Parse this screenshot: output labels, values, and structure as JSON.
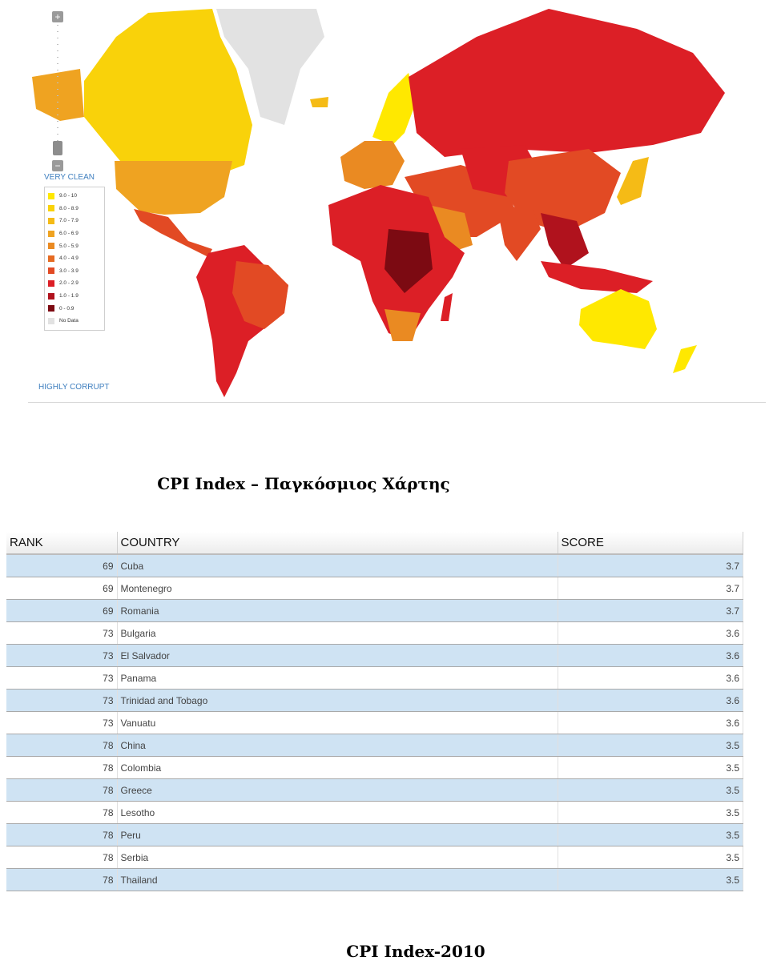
{
  "map": {
    "legend_top_label": "VERY CLEAN",
    "legend_bottom_label": "HIGHLY CORRUPT",
    "zoom_in": "+",
    "zoom_out": "−",
    "legend": [
      {
        "label": "9.0 - 10",
        "color": "#ffe800"
      },
      {
        "label": "8.0 - 8.9",
        "color": "#f9d20a"
      },
      {
        "label": "7.0 - 7.9",
        "color": "#f5bb16"
      },
      {
        "label": "6.0 - 6.9",
        "color": "#efa321"
      },
      {
        "label": "5.0 - 5.9",
        "color": "#ea8a22"
      },
      {
        "label": "4.0 - 4.9",
        "color": "#e66b22"
      },
      {
        "label": "3.0 - 3.9",
        "color": "#e24a24"
      },
      {
        "label": "2.0 - 2.9",
        "color": "#dc1f26"
      },
      {
        "label": "1.0 - 1.9",
        "color": "#b0121d"
      },
      {
        "label": "0 - 0.9",
        "color": "#7c0a12"
      },
      {
        "label": "No Data",
        "color": "#e2e2e2"
      }
    ]
  },
  "captions": {
    "map": "CPI Index – Παγκόσμιος Χάρτης",
    "table": "CPI Index-2010"
  },
  "table": {
    "headers": {
      "rank": "RANK",
      "country": "COUNTRY",
      "score": "SCORE"
    },
    "rows": [
      {
        "rank": "69",
        "country": "Cuba",
        "score": "3.7"
      },
      {
        "rank": "69",
        "country": "Montenegro",
        "score": "3.7"
      },
      {
        "rank": "69",
        "country": "Romania",
        "score": "3.7"
      },
      {
        "rank": "73",
        "country": "Bulgaria",
        "score": "3.6"
      },
      {
        "rank": "73",
        "country": "El Salvador",
        "score": "3.6"
      },
      {
        "rank": "73",
        "country": "Panama",
        "score": "3.6"
      },
      {
        "rank": "73",
        "country": "Trinidad and Tobago",
        "score": "3.6"
      },
      {
        "rank": "73",
        "country": "Vanuatu",
        "score": "3.6"
      },
      {
        "rank": "78",
        "country": "China",
        "score": "3.5"
      },
      {
        "rank": "78",
        "country": "Colombia",
        "score": "3.5"
      },
      {
        "rank": "78",
        "country": "Greece",
        "score": "3.5"
      },
      {
        "rank": "78",
        "country": "Lesotho",
        "score": "3.5"
      },
      {
        "rank": "78",
        "country": "Peru",
        "score": "3.5"
      },
      {
        "rank": "78",
        "country": "Serbia",
        "score": "3.5"
      },
      {
        "rank": "78",
        "country": "Thailand",
        "score": "3.5"
      }
    ]
  }
}
